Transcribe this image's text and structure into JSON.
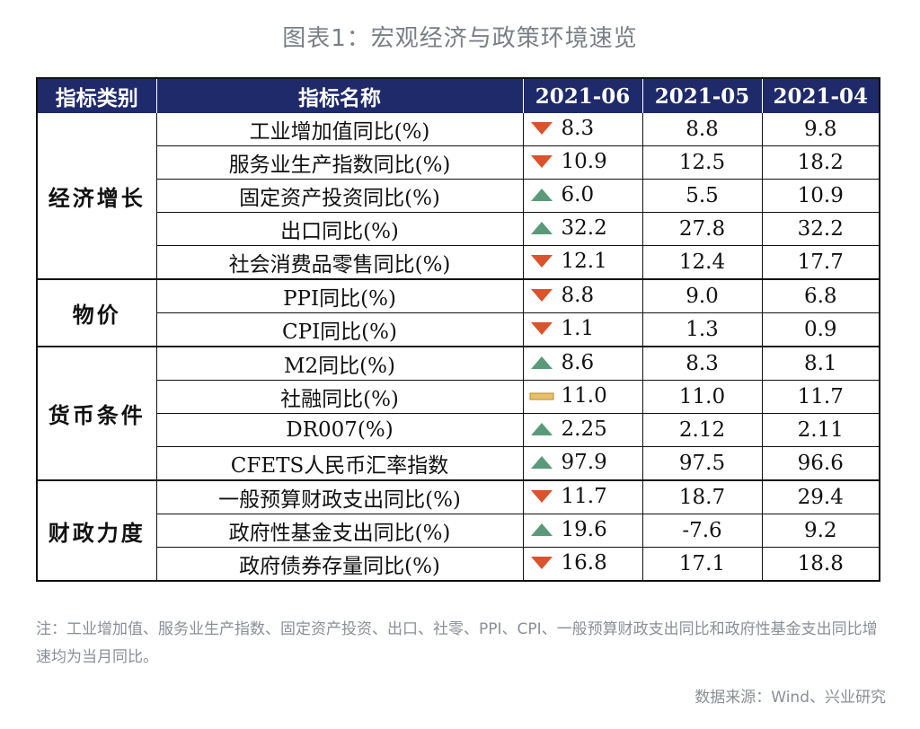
{
  "title": "图表1：宏观经济与政策环境速览",
  "headers": [
    "指标类别",
    "指标名称",
    "2021-06",
    "2021-05",
    "2021-04"
  ],
  "colors": {
    "header_bg": "#1f2a6b",
    "down": "#d9532c",
    "up": "#5a9a7a",
    "flat": "#e8c06a"
  },
  "chart_data": {
    "type": "table",
    "columns": [
      "指标类别",
      "指标名称",
      "2021-06",
      "2021-05",
      "2021-04"
    ],
    "groups": [
      {
        "category": "经济增长",
        "rows": [
          {
            "name": "工业增加值同比(%)",
            "trend": "down",
            "v": [
              "8.3",
              "8.8",
              "9.8"
            ]
          },
          {
            "name": "服务业生产指数同比(%)",
            "trend": "down",
            "v": [
              "10.9",
              "12.5",
              "18.2"
            ]
          },
          {
            "name": "固定资产投资同比(%)",
            "trend": "up",
            "v": [
              "6.0",
              "5.5",
              "10.9"
            ]
          },
          {
            "name": "出口同比(%)",
            "trend": "up",
            "v": [
              "32.2",
              "27.8",
              "32.2"
            ]
          },
          {
            "name": "社会消费品零售同比(%)",
            "trend": "down",
            "v": [
              "12.1",
              "12.4",
              "17.7"
            ]
          }
        ]
      },
      {
        "category": "物价",
        "rows": [
          {
            "name": "PPI同比(%)",
            "trend": "down",
            "v": [
              "8.8",
              "9.0",
              "6.8"
            ]
          },
          {
            "name": "CPI同比(%)",
            "trend": "down",
            "v": [
              "1.1",
              "1.3",
              "0.9"
            ]
          }
        ]
      },
      {
        "category": "货币条件",
        "rows": [
          {
            "name": "M2同比(%)",
            "trend": "up",
            "v": [
              "8.6",
              "8.3",
              "8.1"
            ]
          },
          {
            "name": "社融同比(%)",
            "trend": "flat",
            "v": [
              "11.0",
              "11.0",
              "11.7"
            ]
          },
          {
            "name": "DR007(%)",
            "trend": "up",
            "v": [
              "2.25",
              "2.12",
              "2.11"
            ]
          },
          {
            "name": "CFETS人民币汇率指数",
            "trend": "up",
            "v": [
              "97.9",
              "97.5",
              "96.6"
            ]
          }
        ]
      },
      {
        "category": "财政力度",
        "rows": [
          {
            "name": "一般预算财政支出同比(%)",
            "trend": "down",
            "v": [
              "11.7",
              "18.7",
              "29.4"
            ]
          },
          {
            "name": "政府性基金支出同比(%)",
            "trend": "up",
            "v": [
              "19.6",
              "-7.6",
              "9.2"
            ]
          },
          {
            "name": "政府债券存量同比(%)",
            "trend": "down",
            "v": [
              "16.8",
              "17.1",
              "18.8"
            ]
          }
        ]
      }
    ]
  },
  "note": "注：工业增加值、服务业生产指数、固定资产投资、出口、社零、PPI、CPI、一般预算财政支出同比和政府性基金支出同比增速均为当月同比。",
  "source": "数据来源：Wind、兴业研究"
}
